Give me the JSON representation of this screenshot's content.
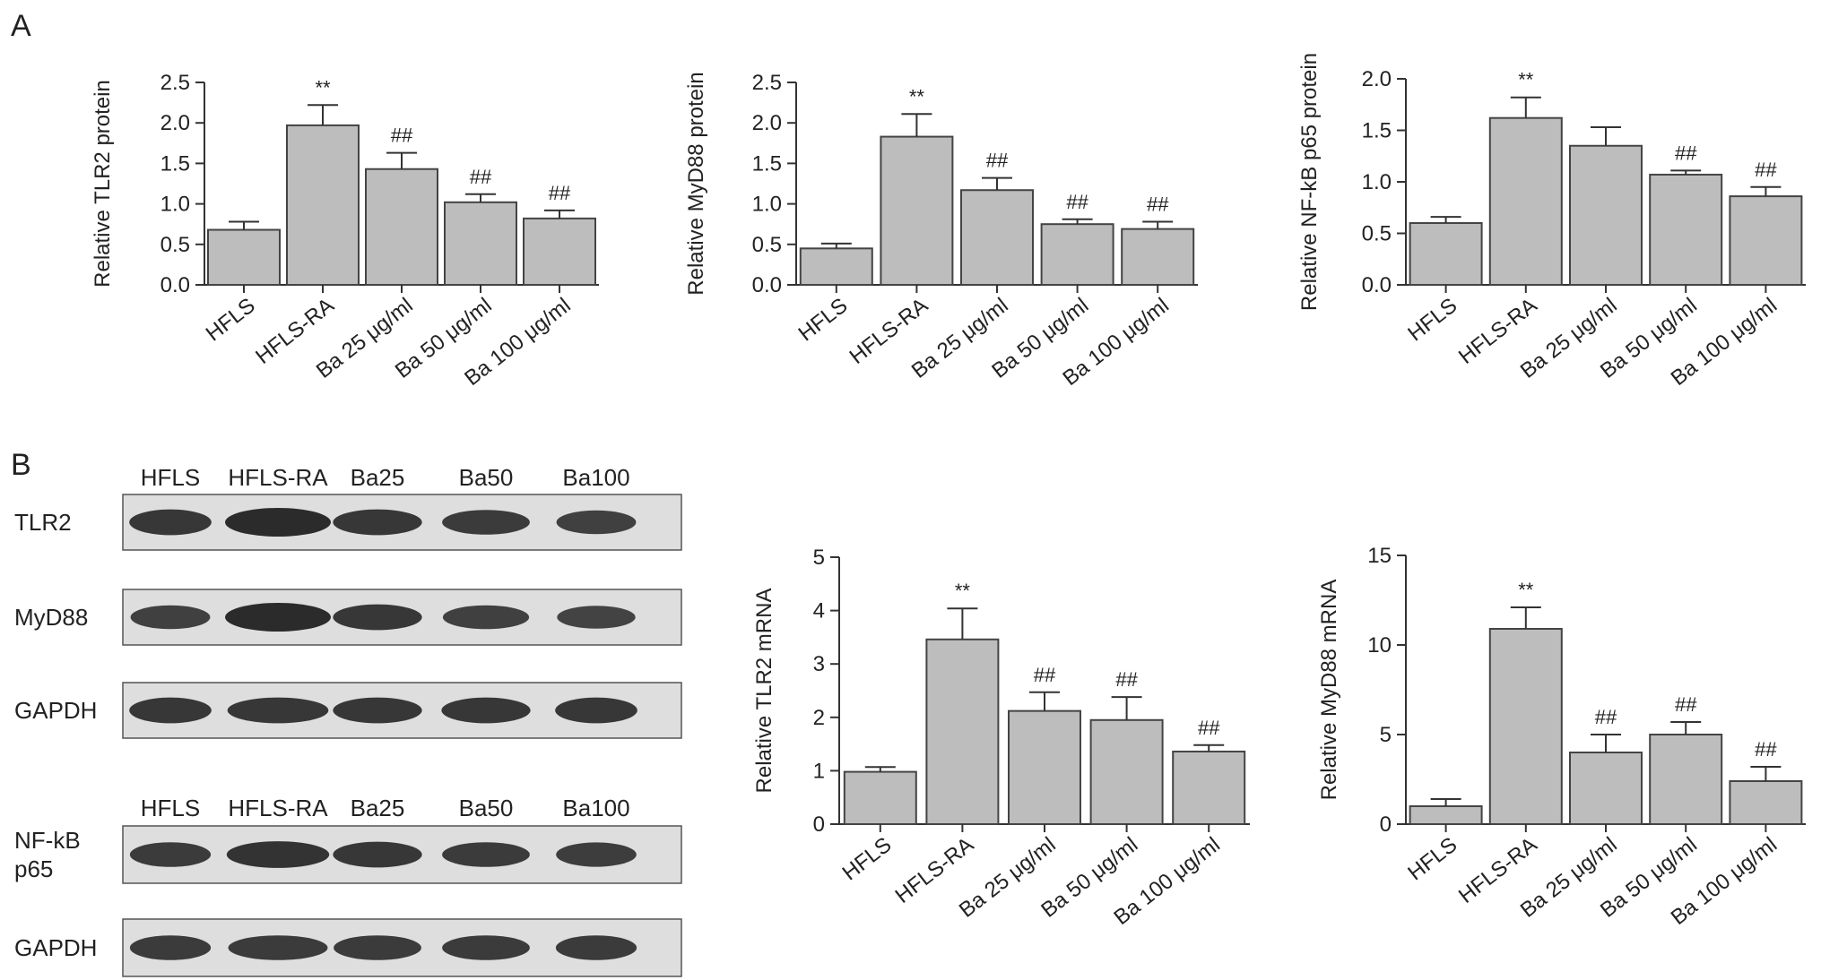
{
  "panel_labels": [
    "A",
    "B"
  ],
  "colors": {
    "bar_fill": "#bdbdbd",
    "bar_stroke": "#444444",
    "axis": "#333333",
    "text": "#222222",
    "blot_bg": "#dedede",
    "band": "#2b2b2b"
  },
  "blots": {
    "top": {
      "lanes": [
        "HFLS",
        "HFLS-RA",
        "Ba25",
        "Ba50",
        "Ba100"
      ],
      "rows": [
        {
          "label": "TLR2",
          "intensity": [
            0.85,
            1.0,
            0.85,
            0.8,
            0.75
          ]
        },
        {
          "label": "MyD88",
          "intensity": [
            0.75,
            1.0,
            0.85,
            0.75,
            0.7
          ]
        },
        {
          "label": "GAPDH",
          "intensity": [
            0.85,
            0.85,
            0.85,
            0.85,
            0.85
          ]
        }
      ]
    },
    "bottom": {
      "lanes": [
        "HFLS",
        "HFLS-RA",
        "Ba25",
        "Ba50",
        "Ba100"
      ],
      "rows": [
        {
          "label": "NF-kB\np65",
          "intensity": [
            0.8,
            0.9,
            0.85,
            0.8,
            0.78
          ]
        },
        {
          "label": "GAPDH",
          "intensity": [
            0.8,
            0.8,
            0.8,
            0.8,
            0.8
          ]
        }
      ]
    }
  },
  "chart_data": [
    {
      "type": "bar",
      "panel": "A",
      "categories": [
        "HFLS",
        "HFLS-RA",
        "Ba 25 μg/ml",
        "Ba 50 μg/ml",
        "Ba 100 μg/ml"
      ],
      "values": [
        0.68,
        1.97,
        1.43,
        1.02,
        0.82
      ],
      "errors": [
        0.1,
        0.25,
        0.2,
        0.1,
        0.1
      ],
      "annotations": [
        "",
        "**",
        "##",
        "##",
        "##"
      ],
      "ylabel": "Relative TLR2 protein",
      "ylim": [
        0,
        2.5
      ],
      "yticks": [
        "0.0",
        "0.5",
        "1.0",
        "1.5",
        "2.0",
        "2.5"
      ]
    },
    {
      "type": "bar",
      "panel": "A",
      "categories": [
        "HFLS",
        "HFLS-RA",
        "Ba 25 μg/ml",
        "Ba 50 μg/ml",
        "Ba 100 μg/ml"
      ],
      "values": [
        0.45,
        1.83,
        1.17,
        0.75,
        0.69
      ],
      "errors": [
        0.06,
        0.28,
        0.15,
        0.06,
        0.09
      ],
      "annotations": [
        "",
        "**",
        "##",
        "##",
        "##"
      ],
      "ylabel": "Relative MyD88  protein",
      "ylim": [
        0,
        2.5
      ],
      "yticks": [
        "0.0",
        "0.5",
        "1.0",
        "1.5",
        "2.0",
        "2.5"
      ]
    },
    {
      "type": "bar",
      "panel": "A",
      "categories": [
        "HFLS",
        "HFLS-RA",
        "Ba 25 μg/ml",
        "Ba 50 μg/ml",
        "Ba 100 μg/ml"
      ],
      "values": [
        0.6,
        1.62,
        1.35,
        1.07,
        0.86
      ],
      "errors": [
        0.06,
        0.2,
        0.18,
        0.04,
        0.09
      ],
      "annotations": [
        "",
        "**",
        "",
        "##",
        "##"
      ],
      "ylabel": "Relative NF-kB p65 protein",
      "ylim": [
        0,
        2.0
      ],
      "yticks": [
        "0.0",
        "0.5",
        "1.0",
        "1.5",
        "2.0"
      ]
    },
    {
      "type": "bar",
      "panel": "B",
      "categories": [
        "HFLS",
        "HFLS-RA",
        "Ba 25 μg/ml",
        "Ba 50 μg/ml",
        "Ba 100 μg/ml"
      ],
      "values": [
        0.98,
        3.46,
        2.12,
        1.95,
        1.36
      ],
      "errors": [
        0.09,
        0.58,
        0.35,
        0.43,
        0.12
      ],
      "annotations": [
        "",
        "**",
        "##",
        "##",
        "##"
      ],
      "ylabel": "Relative TLR2 mRNA",
      "ylim": [
        0,
        5
      ],
      "yticks": [
        "0",
        "1",
        "2",
        "3",
        "4",
        "5"
      ]
    },
    {
      "type": "bar",
      "panel": "B",
      "categories": [
        "HFLS",
        "HFLS-RA",
        "Ba 25 μg/ml",
        "Ba 50 μg/ml",
        "Ba 100 μg/ml"
      ],
      "values": [
        1.0,
        10.9,
        4.0,
        5.0,
        2.4
      ],
      "errors": [
        0.4,
        1.2,
        1.0,
        0.7,
        0.8
      ],
      "annotations": [
        "",
        "**",
        "##",
        "##",
        "##"
      ],
      "ylabel": "Relative MyD88  mRNA",
      "ylim": [
        0,
        15
      ],
      "yticks": [
        "0",
        "5",
        "10",
        "15"
      ]
    }
  ]
}
